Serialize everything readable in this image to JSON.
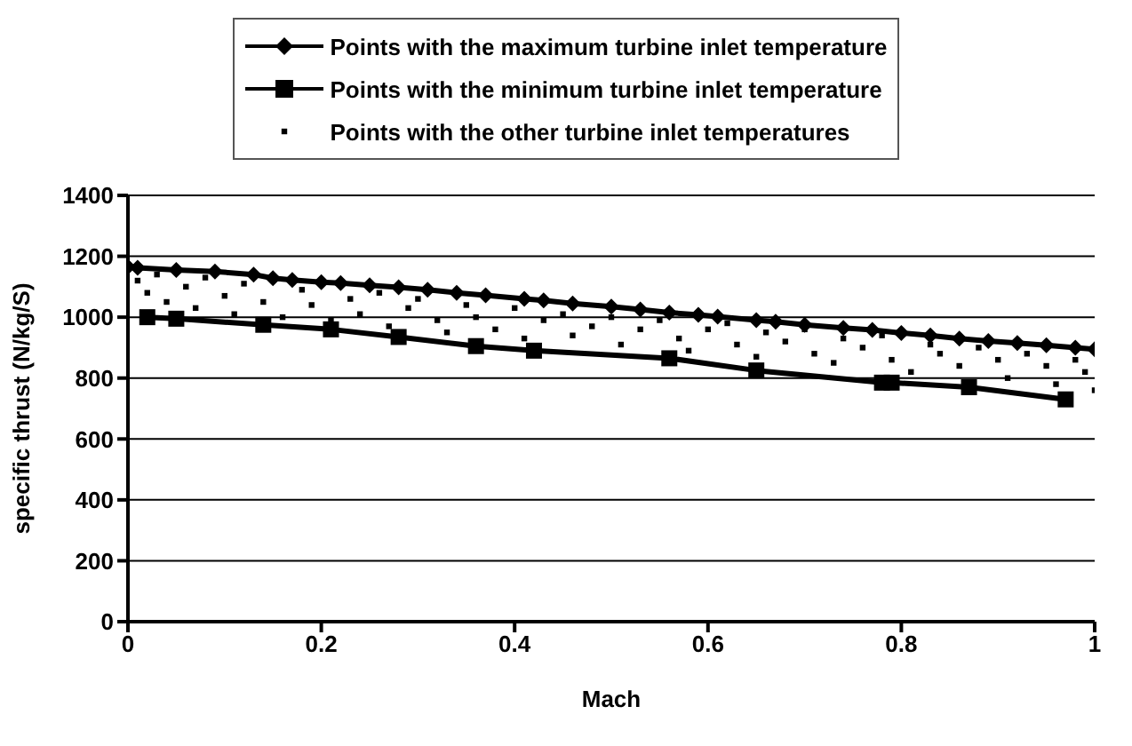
{
  "chart_data": {
    "type": "scatter",
    "xlabel": "Mach",
    "ylabel": "specific thrust (N/kg/S)",
    "xlim": [
      0,
      1
    ],
    "xticks": [
      0,
      0.2,
      0.4,
      0.6,
      0.8,
      1
    ],
    "ylim": [
      0,
      1400
    ],
    "yticks": [
      0,
      200,
      400,
      600,
      800,
      1000,
      1200,
      1400
    ],
    "grid": "y",
    "legend": "top",
    "series": [
      {
        "name": "Points with the maximum turbine inlet temperature",
        "type": "line",
        "marker": "diamond",
        "color": "#000000",
        "x": [
          0,
          0.01,
          0.05,
          0.09,
          0.13,
          0.15,
          0.17,
          0.2,
          0.22,
          0.25,
          0.28,
          0.31,
          0.34,
          0.37,
          0.41,
          0.43,
          0.46,
          0.5,
          0.53,
          0.56,
          0.59,
          0.61,
          0.65,
          0.67,
          0.7,
          0.74,
          0.77,
          0.8,
          0.83,
          0.86,
          0.89,
          0.92,
          0.95,
          0.98,
          1
        ],
        "values": [
          1165,
          1162,
          1155,
          1150,
          1140,
          1128,
          1122,
          1115,
          1112,
          1105,
          1098,
          1090,
          1080,
          1072,
          1060,
          1055,
          1045,
          1035,
          1025,
          1015,
          1008,
          1002,
          990,
          985,
          975,
          965,
          958,
          948,
          940,
          930,
          922,
          915,
          908,
          900,
          895
        ]
      },
      {
        "name": "Points with the minimum turbine inlet temperature",
        "type": "line",
        "marker": "square",
        "color": "#000000",
        "x": [
          0.02,
          0.05,
          0.14,
          0.21,
          0.28,
          0.36,
          0.42,
          0.56,
          0.65,
          0.78,
          0.79,
          0.87,
          0.97
        ],
        "values": [
          1000,
          995,
          975,
          960,
          935,
          905,
          890,
          865,
          825,
          785,
          785,
          770,
          730
        ]
      },
      {
        "name": "Points with the other turbine inlet temperatures",
        "marker": "square",
        "color": "#000000",
        "x": [
          0.01,
          0.02,
          0.03,
          0.04,
          0.06,
          0.07,
          0.08,
          0.1,
          0.11,
          0.12,
          0.14,
          0.16,
          0.18,
          0.19,
          0.21,
          0.23,
          0.24,
          0.26,
          0.27,
          0.29,
          0.3,
          0.32,
          0.33,
          0.35,
          0.36,
          0.38,
          0.4,
          0.41,
          0.43,
          0.45,
          0.46,
          0.48,
          0.5,
          0.51,
          0.53,
          0.55,
          0.57,
          0.58,
          0.6,
          0.62,
          0.63,
          0.65,
          0.66,
          0.68,
          0.7,
          0.71,
          0.73,
          0.74,
          0.76,
          0.78,
          0.79,
          0.81,
          0.83,
          0.84,
          0.86,
          0.88,
          0.9,
          0.91,
          0.93,
          0.95,
          0.96,
          0.98,
          0.99,
          1
        ],
        "values": [
          1120,
          1080,
          1140,
          1050,
          1100,
          1030,
          1130,
          1070,
          1010,
          1110,
          1050,
          1000,
          1090,
          1040,
          990,
          1060,
          1010,
          1080,
          970,
          1030,
          1060,
          990,
          950,
          1040,
          1000,
          960,
          1030,
          930,
          990,
          1010,
          940,
          970,
          1000,
          910,
          960,
          990,
          930,
          890,
          960,
          980,
          910,
          870,
          950,
          920,
          960,
          880,
          850,
          930,
          900,
          940,
          860,
          820,
          910,
          880,
          840,
          900,
          860,
          800,
          880,
          840,
          780,
          860,
          820,
          760
        ]
      }
    ]
  }
}
